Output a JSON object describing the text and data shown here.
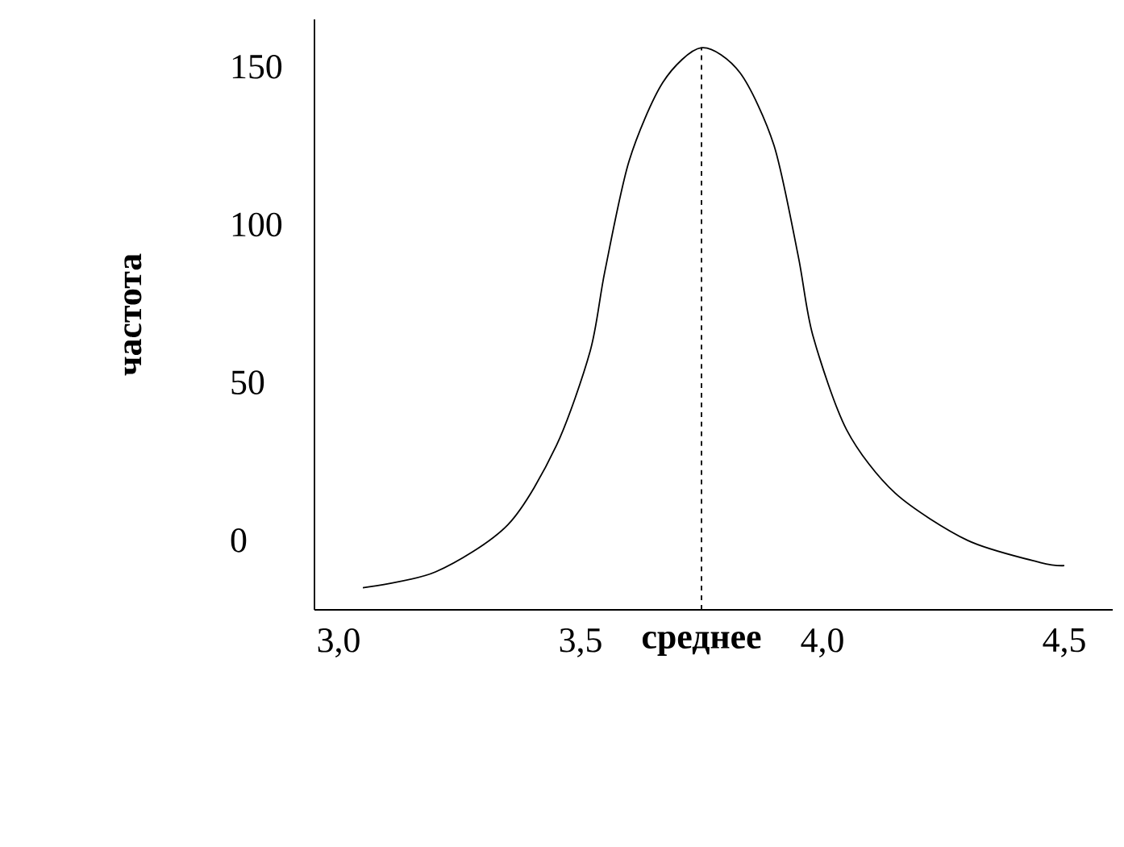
{
  "chart_data": {
    "type": "line",
    "ylabel": "частота",
    "x": [
      3.05,
      3.2,
      3.35,
      3.45,
      3.52,
      3.55,
      3.6,
      3.67,
      3.75,
      3.83,
      3.9,
      3.95,
      3.98,
      4.05,
      4.15,
      4.3,
      4.45,
      4.5
    ],
    "series": [
      {
        "color": "#000000",
        "values": [
          -15,
          -10,
          5,
          30,
          60,
          85,
          120,
          145,
          156,
          148,
          125,
          90,
          65,
          35,
          15,
          0,
          -7,
          -8
        ]
      }
    ],
    "xlim": [
      2.95,
      4.6
    ],
    "ylim": [
      -22,
      165
    ],
    "xticks": [
      {
        "value": 3.0,
        "label": "3,0"
      },
      {
        "value": 3.5,
        "label": "3,5"
      },
      {
        "value": 4.0,
        "label": "4,0"
      },
      {
        "value": 4.5,
        "label": "4,5"
      }
    ],
    "yticks": [
      0,
      50,
      100,
      150
    ],
    "ref_lines": [
      {
        "axis": "x",
        "value": 3.75,
        "label": "среднее",
        "color": "#000000",
        "line_style": "dashed"
      }
    ],
    "grid": false,
    "marker": "none"
  }
}
